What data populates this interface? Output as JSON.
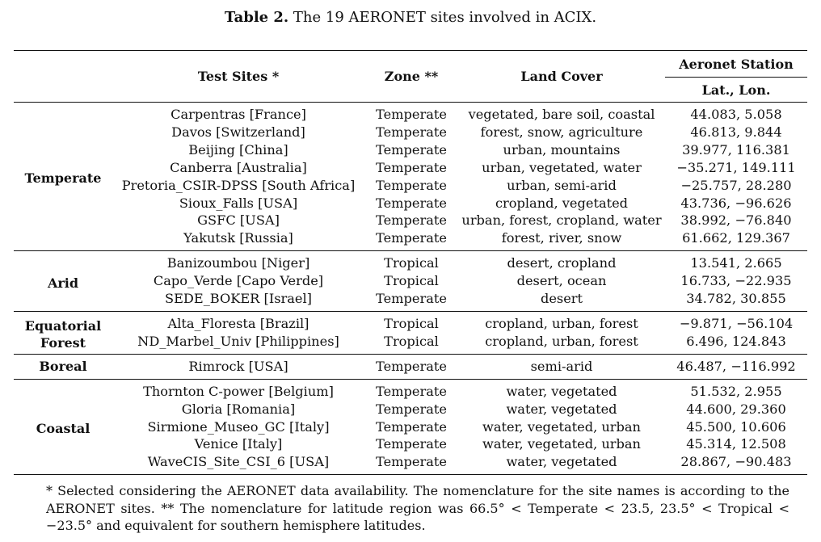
{
  "caption": {
    "label": "Table 2.",
    "text": " The 19 AERONET sites involved in ACIX."
  },
  "headers": {
    "test_sites": "Test Sites *",
    "zone": "Zone **",
    "land_cover": "Land Cover",
    "aeronet_station": "Aeronet Station",
    "lat_lon": "Lat., Lon."
  },
  "groups": [
    {
      "name": "Temperate",
      "rows": [
        {
          "site": "Carpentras [France]",
          "zone": "Temperate",
          "land_cover": "vegetated, bare soil, coastal",
          "coords": "44.083, 5.058"
        },
        {
          "site": "Davos [Switzerland]",
          "zone": "Temperate",
          "land_cover": "forest, snow, agriculture",
          "coords": "46.813, 9.844"
        },
        {
          "site": "Beijing [China]",
          "zone": "Temperate",
          "land_cover": "urban, mountains",
          "coords": "39.977, 116.381"
        },
        {
          "site": "Canberra [Australia]",
          "zone": "Temperate",
          "land_cover": "urban, vegetated, water",
          "coords": "−35.271, 149.111"
        },
        {
          "site": "Pretoria_CSIR-DPSS [South Africa]",
          "zone": "Temperate",
          "land_cover": "urban, semi-arid",
          "coords": "−25.757, 28.280"
        },
        {
          "site": "Sioux_Falls [USA]",
          "zone": "Temperate",
          "land_cover": "cropland, vegetated",
          "coords": "43.736, −96.626"
        },
        {
          "site": "GSFC [USA]",
          "zone": "Temperate",
          "land_cover": "urban, forest, cropland, water",
          "coords": "38.992, −76.840"
        },
        {
          "site": "Yakutsk [Russia]",
          "zone": "Temperate",
          "land_cover": "forest, river, snow",
          "coords": "61.662, 129.367"
        }
      ]
    },
    {
      "name": "Arid",
      "rows": [
        {
          "site": "Banizoumbou [Niger]",
          "zone": "Tropical",
          "land_cover": "desert, cropland",
          "coords": "13.541, 2.665"
        },
        {
          "site": "Capo_Verde [Capo Verde]",
          "zone": "Tropical",
          "land_cover": "desert, ocean",
          "coords": "16.733, −22.935"
        },
        {
          "site": "SEDE_BOKER [Israel]",
          "zone": "Temperate",
          "land_cover": "desert",
          "coords": "34.782, 30.855"
        }
      ]
    },
    {
      "name": "Equatorial Forest",
      "rows": [
        {
          "site": "Alta_Floresta [Brazil]",
          "zone": "Tropical",
          "land_cover": "cropland, urban, forest",
          "coords": "−9.871, −56.104"
        },
        {
          "site": "ND_Marbel_Univ [Philippines]",
          "zone": "Tropical",
          "land_cover": "cropland, urban, forest",
          "coords": "6.496, 124.843"
        }
      ]
    },
    {
      "name": "Boreal",
      "rows": [
        {
          "site": "Rimrock [USA]",
          "zone": "Temperate",
          "land_cover": "semi-arid",
          "coords": "46.487, −116.992"
        }
      ]
    },
    {
      "name": "Coastal",
      "rows": [
        {
          "site": "Thornton C-power [Belgium]",
          "zone": "Temperate",
          "land_cover": "water, vegetated",
          "coords": "51.532, 2.955"
        },
        {
          "site": "Gloria [Romania]",
          "zone": "Temperate",
          "land_cover": "water, vegetated",
          "coords": "44.600, 29.360"
        },
        {
          "site": "Sirmione_Museo_GC [Italy]",
          "zone": "Temperate",
          "land_cover": "water, vegetated, urban",
          "coords": "45.500, 10.606"
        },
        {
          "site": "Venice [Italy]",
          "zone": "Temperate",
          "land_cover": "water, vegetated, urban",
          "coords": "45.314, 12.508"
        },
        {
          "site": "WaveCIS_Site_CSI_6 [USA]",
          "zone": "Temperate",
          "land_cover": "water, vegetated",
          "coords": "28.867, −90.483"
        }
      ]
    }
  ],
  "footnote": "* Selected considering the AERONET data availability. The nomenclature for the site names is according to the AERONET sites. ** The nomenclature for latitude region was 66.5° < Temperate < 23.5, 23.5° < Tropical < −23.5° and equivalent for southern hemisphere latitudes."
}
